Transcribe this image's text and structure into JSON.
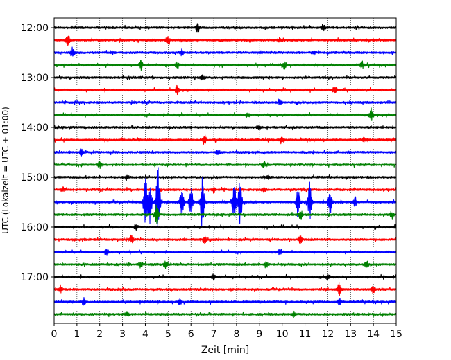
{
  "chart_data": {
    "type": "line",
    "xlabel": "Zeit  [min]",
    "ylabel": "UTC (Lokalzeit = UTC + 01:00)",
    "xlim": [
      0,
      15
    ],
    "x_ticks": [
      "0",
      "1",
      "2",
      "3",
      "4",
      "5",
      "6",
      "7",
      "8",
      "9",
      "10",
      "11",
      "12",
      "13",
      "14",
      "15"
    ],
    "y_tick_labels": [
      "12:00",
      "13:00",
      "14:00",
      "15:00",
      "16:00",
      "17:00"
    ],
    "grid": "vertical dotted",
    "trace_colors": [
      "#000000",
      "#ff0000",
      "#0000ff",
      "#008000"
    ],
    "traces": [
      {
        "start": "12:00",
        "events": [
          [
            6.3,
            0.35
          ],
          [
            11.8,
            0.3
          ]
        ]
      },
      {
        "start": "12:15",
        "events": [
          [
            0.6,
            0.5
          ],
          [
            5.0,
            0.3
          ],
          [
            9.9,
            0.2
          ]
        ]
      },
      {
        "start": "12:30",
        "events": [
          [
            0.8,
            0.4
          ],
          [
            5.6,
            0.25
          ],
          [
            11.4,
            0.2
          ]
        ]
      },
      {
        "start": "12:45",
        "events": [
          [
            3.8,
            0.4
          ],
          [
            5.4,
            0.25
          ],
          [
            10.1,
            0.3
          ],
          [
            13.5,
            0.3
          ]
        ]
      },
      {
        "start": "13:00",
        "events": [
          [
            6.5,
            0.15
          ]
        ]
      },
      {
        "start": "13:15",
        "events": [
          [
            5.4,
            0.4
          ],
          [
            12.3,
            0.35
          ]
        ]
      },
      {
        "start": "13:30",
        "events": [
          [
            9.9,
            0.2
          ]
        ]
      },
      {
        "start": "13:45",
        "events": [
          [
            13.9,
            0.6
          ],
          [
            8.5,
            0.2
          ]
        ]
      },
      {
        "start": "14:00",
        "events": [
          [
            9.0,
            0.2
          ]
        ]
      },
      {
        "start": "14:15",
        "events": [
          [
            6.6,
            0.45
          ],
          [
            10.0,
            0.25
          ],
          [
            13.6,
            0.2
          ]
        ]
      },
      {
        "start": "14:30",
        "events": [
          [
            1.2,
            0.3
          ],
          [
            7.2,
            0.25
          ]
        ]
      },
      {
        "start": "14:45",
        "events": [
          [
            2.0,
            0.25
          ],
          [
            9.2,
            0.25
          ]
        ]
      },
      {
        "start": "15:00",
        "events": [
          [
            3.2,
            0.25
          ],
          [
            9.4,
            0.2
          ]
        ]
      },
      {
        "start": "15:15",
        "events": [
          [
            0.4,
            0.25
          ],
          [
            7.0,
            0.25
          ],
          [
            9.2,
            0.2
          ]
        ]
      },
      {
        "start": "15:30",
        "events": [
          [
            4.0,
            3.0
          ],
          [
            4.2,
            2.3
          ],
          [
            4.55,
            4.2
          ],
          [
            5.6,
            1.2
          ],
          [
            6.0,
            1.6
          ],
          [
            6.5,
            2.6
          ],
          [
            7.9,
            1.8
          ],
          [
            8.15,
            2.2
          ],
          [
            10.7,
            1.4
          ],
          [
            11.2,
            1.8
          ],
          [
            12.1,
            1.1
          ],
          [
            13.2,
            0.4
          ]
        ]
      },
      {
        "start": "15:45",
        "events": [
          [
            4.5,
            0.9
          ],
          [
            10.8,
            0.5
          ],
          [
            14.8,
            0.3
          ]
        ]
      },
      {
        "start": "16:00",
        "events": [
          [
            3.6,
            0.2
          ],
          [
            15.0,
            0.2
          ]
        ]
      },
      {
        "start": "16:15",
        "events": [
          [
            3.4,
            0.3
          ],
          [
            6.6,
            0.25
          ],
          [
            10.8,
            0.3
          ]
        ]
      },
      {
        "start": "16:30",
        "events": [
          [
            2.3,
            0.4
          ],
          [
            9.9,
            0.3
          ]
        ]
      },
      {
        "start": "16:45",
        "events": [
          [
            3.8,
            0.3
          ],
          [
            4.9,
            0.35
          ],
          [
            9.3,
            0.3
          ],
          [
            13.7,
            0.35
          ]
        ]
      },
      {
        "start": "17:00",
        "events": [
          [
            7.0,
            0.3
          ],
          [
            12.0,
            0.2
          ]
        ]
      },
      {
        "start": "17:15",
        "events": [
          [
            0.3,
            0.3
          ],
          [
            12.5,
            0.55
          ],
          [
            14.0,
            0.35
          ]
        ]
      },
      {
        "start": "17:30",
        "events": [
          [
            1.3,
            0.35
          ],
          [
            5.5,
            0.3
          ],
          [
            12.5,
            0.35
          ]
        ]
      },
      {
        "start": "17:45",
        "events": [
          [
            3.2,
            0.2
          ],
          [
            10.5,
            0.2
          ]
        ]
      }
    ]
  }
}
